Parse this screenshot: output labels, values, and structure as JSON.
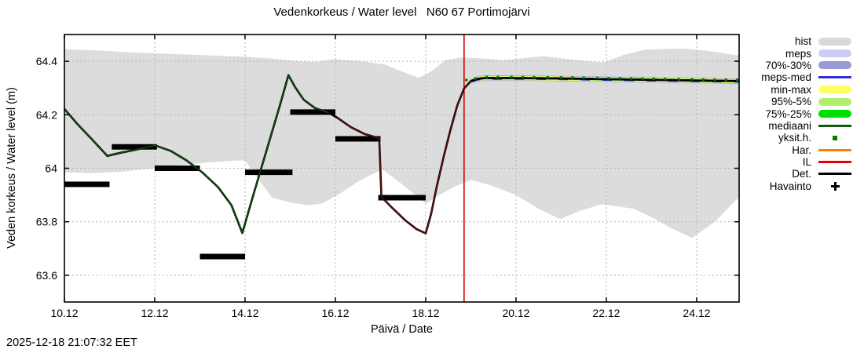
{
  "footer": {
    "timestamp": "2025-12-18 21:07:32 EET"
  },
  "chart_data": {
    "type": "line",
    "title": "Vedenkorkeus / Water level   N60 67 Portimojärvi",
    "xlabel": "Päivä / Date",
    "ylabel": "Veden korkeus / Water level (m)",
    "x_domain": [
      10,
      24.94
    ],
    "y_domain": [
      63.5,
      64.5
    ],
    "x_ticks": [
      {
        "v": 10,
        "label": "10.12"
      },
      {
        "v": 12,
        "label": "12.12"
      },
      {
        "v": 14,
        "label": "14.12"
      },
      {
        "v": 16,
        "label": "16.12"
      },
      {
        "v": 18,
        "label": "18.12"
      },
      {
        "v": 20,
        "label": "20.12"
      },
      {
        "v": 22,
        "label": "22.12"
      },
      {
        "v": 24,
        "label": "24.12"
      }
    ],
    "y_ticks": [
      {
        "v": 63.6,
        "label": "63.6"
      },
      {
        "v": 63.8,
        "label": "63.8"
      },
      {
        "v": 64,
        "label": "64"
      },
      {
        "v": 64.2,
        "label": "64.2"
      },
      {
        "v": 64.4,
        "label": "64.4"
      }
    ],
    "grid_color": "#b4b4b4",
    "current_time": {
      "x": 18.85,
      "color": "#d40000"
    },
    "hist_band": {
      "color": "#dcdcdc",
      "upper": [
        [
          10,
          64.445
        ],
        [
          10.8,
          64.44
        ],
        [
          11.6,
          64.432
        ],
        [
          12.4,
          64.427
        ],
        [
          13.2,
          64.422
        ],
        [
          14,
          64.417
        ],
        [
          14.6,
          64.41
        ],
        [
          15.2,
          64.4
        ],
        [
          15.6,
          64.398
        ],
        [
          16,
          64.408
        ],
        [
          16.6,
          64.4
        ],
        [
          17.1,
          64.388
        ],
        [
          17.5,
          64.36
        ],
        [
          17.85,
          64.338
        ],
        [
          18.1,
          64.36
        ],
        [
          18.45,
          64.405
        ],
        [
          18.8,
          64.414
        ],
        [
          19.3,
          64.41
        ],
        [
          19.7,
          64.404
        ],
        [
          20.2,
          64.412
        ],
        [
          20.6,
          64.419
        ],
        [
          21.1,
          64.41
        ],
        [
          21.6,
          64.4
        ],
        [
          21.95,
          64.396
        ],
        [
          22.4,
          64.425
        ],
        [
          22.85,
          64.443
        ],
        [
          23.3,
          64.446
        ],
        [
          23.7,
          64.447
        ],
        [
          24.2,
          64.44
        ],
        [
          24.6,
          64.43
        ],
        [
          24.94,
          64.421
        ]
      ],
      "lower": [
        [
          10,
          63.985
        ],
        [
          10.6,
          63.982
        ],
        [
          11.2,
          63.986
        ],
        [
          12,
          64.0
        ],
        [
          12.6,
          64.012
        ],
        [
          13.2,
          64.022
        ],
        [
          13.7,
          64.028
        ],
        [
          14.0,
          64.03
        ],
        [
          14.25,
          63.97
        ],
        [
          14.6,
          63.89
        ],
        [
          15.0,
          63.872
        ],
        [
          15.4,
          63.862
        ],
        [
          15.7,
          63.868
        ],
        [
          16.1,
          63.905
        ],
        [
          16.5,
          63.95
        ],
        [
          16.9,
          63.985
        ],
        [
          17.05,
          63.995
        ],
        [
          17.4,
          63.95
        ],
        [
          17.7,
          63.91
        ],
        [
          18.0,
          63.868
        ],
        [
          18.3,
          63.9
        ],
        [
          18.65,
          63.932
        ],
        [
          19.0,
          63.956
        ],
        [
          19.4,
          63.938
        ],
        [
          20.0,
          63.9
        ],
        [
          20.5,
          63.848
        ],
        [
          20.98,
          63.81
        ],
        [
          21.4,
          63.84
        ],
        [
          21.9,
          63.866
        ],
        [
          22.3,
          63.856
        ],
        [
          22.6,
          63.849
        ],
        [
          23.0,
          63.818
        ],
        [
          23.45,
          63.775
        ],
        [
          23.9,
          63.74
        ],
        [
          24.4,
          63.8
        ],
        [
          24.94,
          63.893
        ]
      ]
    },
    "observations": {
      "name": "Havainto",
      "color": "#000000",
      "bars": [
        {
          "start": 10.0,
          "end": 11.0,
          "value": 63.94
        },
        {
          "start": 11.05,
          "end": 12.05,
          "value": 64.08
        },
        {
          "start": 12.0,
          "end": 13.0,
          "value": 64.0
        },
        {
          "start": 13.0,
          "end": 14.0,
          "value": 63.67
        },
        {
          "start": 14.0,
          "end": 15.05,
          "value": 63.985
        },
        {
          "start": 15.0,
          "end": 16.0,
          "value": 64.21
        },
        {
          "start": 16.0,
          "end": 17.0,
          "value": 64.11
        },
        {
          "start": 16.95,
          "end": 18.0,
          "value": 63.89
        }
      ]
    },
    "model_line": {
      "name": "Det.",
      "color": "#000000",
      "points": [
        [
          10,
          64.222
        ],
        [
          10.3,
          64.163
        ],
        [
          10.6,
          64.11
        ],
        [
          10.95,
          64.046
        ],
        [
          11.25,
          64.058
        ],
        [
          11.6,
          64.07
        ],
        [
          12,
          64.086
        ],
        [
          12.35,
          64.065
        ],
        [
          12.7,
          64.03
        ],
        [
          13.05,
          63.985
        ],
        [
          13.4,
          63.93
        ],
        [
          13.7,
          63.862
        ],
        [
          13.94,
          63.758
        ],
        [
          14.2,
          63.91
        ],
        [
          14.5,
          64.08
        ],
        [
          14.78,
          64.24
        ],
        [
          14.96,
          64.348
        ],
        [
          15.12,
          64.3
        ],
        [
          15.3,
          64.256
        ],
        [
          15.55,
          64.225
        ],
        [
          15.85,
          64.208
        ],
        [
          16.05,
          64.188
        ],
        [
          16.35,
          64.153
        ],
        [
          16.65,
          64.128
        ],
        [
          16.97,
          64.112
        ],
        [
          17.02,
          63.893
        ],
        [
          17.25,
          63.853
        ],
        [
          17.55,
          63.805
        ],
        [
          17.8,
          63.772
        ],
        [
          18.0,
          63.757
        ],
        [
          18.12,
          63.83
        ],
        [
          18.25,
          63.935
        ],
        [
          18.4,
          64.045
        ],
        [
          18.55,
          64.145
        ],
        [
          18.7,
          64.235
        ],
        [
          18.85,
          64.298
        ],
        [
          19.0,
          64.326
        ],
        [
          19.15,
          64.334
        ],
        [
          19.3,
          64.337
        ]
      ]
    },
    "overlays": [
      {
        "name": "mediaani-hist",
        "color": "#0e5c0e",
        "range": [
          10,
          15.9
        ]
      },
      {
        "name": "il-hist",
        "color": "#6e0f0f",
        "range": [
          15.9,
          19.0
        ]
      }
    ],
    "forecast": {
      "center": [
        [
          19.3,
          64.337
        ],
        [
          20,
          64.337
        ],
        [
          20.8,
          64.336
        ],
        [
          21.6,
          64.334
        ],
        [
          22.4,
          64.332
        ],
        [
          23.2,
          64.33
        ],
        [
          24,
          64.328
        ],
        [
          24.94,
          64.326
        ]
      ],
      "band_start": 18.88,
      "bands": [
        {
          "name": "meps",
          "color": "#ccccf5",
          "half_width": 0.012
        },
        {
          "name": "70%-30%",
          "color": "#9999d6",
          "half_width": 0.0095
        },
        {
          "name": "min-max",
          "color": "#ffff66",
          "half_width": 0.008
        },
        {
          "name": "95%-5%",
          "color": "#b2ef6e",
          "half_width": 0.006
        },
        {
          "name": "75%-25%",
          "color": "#00dd00",
          "half_width": 0.004
        }
      ],
      "lines": [
        {
          "name": "meps-med",
          "color": "#3333cc",
          "offset": -0.0035,
          "width": 1.8,
          "dash": "12 16"
        },
        {
          "name": "mediaani",
          "color": "#0e5c0e",
          "offset": 0.0025,
          "width": 1.4,
          "dash": "9 12"
        },
        {
          "name": "Det.",
          "color": "#000000",
          "offset": 0,
          "width": 2.6,
          "dash": ""
        }
      ],
      "markers": {
        "name": "yksit.h.",
        "color": "#067806",
        "offset": 0.004,
        "days": [
          18.9,
          19.1,
          19.35,
          19.6,
          19.9,
          20.15,
          20.4,
          20.7,
          21.0,
          21.25,
          21.5,
          21.8,
          22.05,
          22.3,
          22.55,
          22.8,
          23.05,
          23.3,
          23.6,
          23.9,
          24.15,
          24.4,
          24.65,
          24.9
        ]
      }
    },
    "legend": [
      {
        "label": "hist",
        "swatch": "band",
        "color": "#d9d9d9"
      },
      {
        "label": "meps",
        "swatch": "band",
        "color": "#ccccf5"
      },
      {
        "label": "70%-30%",
        "swatch": "band",
        "color": "#9999d6"
      },
      {
        "label": "meps-med",
        "swatch": "line",
        "color": "#3333cc"
      },
      {
        "label": "min-max",
        "swatch": "band",
        "color": "#ffff66"
      },
      {
        "label": "95%-5%",
        "swatch": "band",
        "color": "#b2ef6e"
      },
      {
        "label": "75%-25%",
        "swatch": "band",
        "color": "#00dd00"
      },
      {
        "label": "mediaani",
        "swatch": "line",
        "color": "#0e5c0e"
      },
      {
        "label": "yksit.h.",
        "swatch": "square",
        "color": "#067806"
      },
      {
        "label": "Har.",
        "swatch": "line",
        "color": "#ff8000"
      },
      {
        "label": "IL",
        "swatch": "line",
        "color": "#ee0000"
      },
      {
        "label": "Det.",
        "swatch": "line",
        "color": "#000000"
      },
      {
        "label": "Havainto",
        "swatch": "plus",
        "color": "#000000"
      }
    ]
  }
}
